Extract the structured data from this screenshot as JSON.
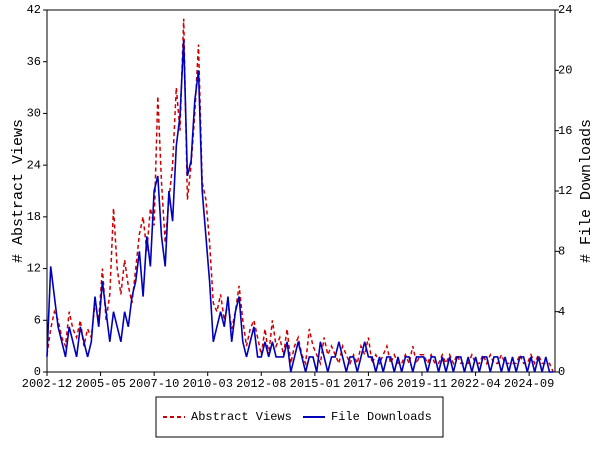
{
  "chart_data": {
    "type": "line",
    "ylabel": "# Abstract Views",
    "y2label": "# File Downloads",
    "x": [
      "2002-12",
      "2003-02",
      "2003-04",
      "2003-06",
      "2003-08",
      "2003-10",
      "2003-12",
      "2004-02",
      "2004-04",
      "2004-06",
      "2004-08",
      "2004-10",
      "2004-12",
      "2005-02",
      "2005-04",
      "2005-06",
      "2005-08",
      "2005-10",
      "2005-12",
      "2006-02",
      "2006-04",
      "2006-06",
      "2006-08",
      "2006-10",
      "2006-12",
      "2007-02",
      "2007-04",
      "2007-06",
      "2007-08",
      "2007-10",
      "2007-12",
      "2008-02",
      "2008-04",
      "2008-06",
      "2008-08",
      "2008-10",
      "2008-12",
      "2009-02",
      "2009-04",
      "2009-06",
      "2009-08",
      "2009-10",
      "2009-12",
      "2010-02",
      "2010-04",
      "2010-06",
      "2010-08",
      "2010-10",
      "2010-12",
      "2011-02",
      "2011-04",
      "2011-06",
      "2011-08",
      "2011-10",
      "2011-12",
      "2012-02",
      "2012-04",
      "2012-06",
      "2012-08",
      "2012-10",
      "2012-12",
      "2013-02",
      "2013-04",
      "2013-06",
      "2013-08",
      "2013-10",
      "2013-12",
      "2014-02",
      "2014-04",
      "2014-06",
      "2014-08",
      "2014-10",
      "2014-12",
      "2015-02",
      "2015-04",
      "2015-06",
      "2015-08",
      "2015-10",
      "2015-12",
      "2016-02",
      "2016-04",
      "2016-06",
      "2016-08",
      "2016-10",
      "2016-12",
      "2017-02",
      "2017-04",
      "2017-06",
      "2017-08",
      "2017-10",
      "2017-12",
      "2018-02",
      "2018-04",
      "2018-06",
      "2018-08",
      "2018-10",
      "2018-12",
      "2019-02",
      "2019-04",
      "2019-06",
      "2019-08",
      "2019-10",
      "2019-12",
      "2020-02",
      "2020-04",
      "2020-06",
      "2020-08",
      "2020-10",
      "2020-12",
      "2021-02",
      "2021-04",
      "2021-06",
      "2021-08",
      "2021-10",
      "2021-12",
      "2022-02",
      "2022-04",
      "2022-06",
      "2022-08",
      "2022-10",
      "2022-12",
      "2023-02",
      "2023-04",
      "2023-06",
      "2023-08",
      "2023-10",
      "2023-12",
      "2024-02",
      "2024-04",
      "2024-06",
      "2024-08",
      "2024-10",
      "2024-12",
      "2025-02",
      "2025-04",
      "2025-06",
      "2025-08",
      "2025-10"
    ],
    "series": [
      {
        "name": "Abstract Views",
        "color": "#cc0000",
        "dashed": true,
        "values": [
          2,
          5,
          7,
          6,
          4,
          3,
          7,
          5,
          4,
          6,
          3,
          5,
          4,
          8,
          6,
          12,
          6,
          9,
          19,
          12,
          9,
          13,
          10,
          8,
          12,
          16,
          18,
          14,
          19,
          17,
          32,
          22,
          15,
          20,
          24,
          33,
          28,
          41,
          20,
          24,
          30,
          38,
          22,
          20,
          15,
          8,
          7,
          9,
          6,
          8,
          5,
          7,
          10,
          6,
          3,
          5,
          6,
          4,
          2,
          5,
          2,
          6,
          3,
          4,
          2,
          5,
          1,
          3,
          4,
          2,
          1,
          5,
          3,
          2,
          1,
          4,
          2,
          3,
          2,
          1,
          3,
          2,
          1,
          2,
          1,
          3,
          2,
          4,
          1,
          2,
          1,
          2,
          3,
          1,
          2,
          1,
          1,
          2,
          1,
          3,
          1,
          2,
          2,
          1,
          2,
          1,
          1,
          2,
          1,
          2,
          1,
          2,
          1,
          1,
          1,
          2,
          1,
          1,
          2,
          1,
          2,
          1,
          1,
          2,
          1,
          1,
          1,
          1,
          2,
          1,
          1,
          2,
          1,
          2,
          1,
          1,
          1,
          0
        ]
      },
      {
        "name": "File Downloads",
        "color": "#0000bb",
        "dashed": false,
        "axis": "y2",
        "values": [
          1,
          7,
          5,
          3,
          2,
          1,
          3,
          2,
          1,
          3,
          2,
          1,
          2,
          5,
          3,
          6,
          4,
          2,
          4,
          3,
          2,
          4,
          3,
          5,
          6,
          8,
          5,
          9,
          7,
          12,
          13,
          9,
          7,
          12,
          10,
          15,
          17,
          22,
          13,
          14,
          18,
          20,
          12,
          9,
          6,
          2,
          3,
          4,
          3,
          5,
          2,
          4,
          5,
          2,
          1,
          2,
          3,
          1,
          1,
          2,
          1,
          2,
          1,
          1,
          1,
          2,
          0,
          1,
          2,
          1,
          0,
          1,
          1,
          0,
          2,
          1,
          0,
          1,
          1,
          2,
          1,
          0,
          1,
          1,
          0,
          1,
          2,
          1,
          1,
          0,
          1,
          0,
          1,
          1,
          0,
          1,
          0,
          1,
          1,
          0,
          1,
          1,
          1,
          0,
          1,
          1,
          0,
          1,
          0,
          1,
          0,
          1,
          1,
          0,
          1,
          0,
          1,
          0,
          1,
          1,
          0,
          1,
          1,
          0,
          1,
          0,
          1,
          0,
          1,
          1,
          0,
          1,
          0,
          1,
          0,
          1,
          0,
          0
        ]
      }
    ],
    "xlim": [
      "2002-12",
      "2025-11"
    ],
    "xticks": [
      "2002-12",
      "2005-05",
      "2007-10",
      "2010-03",
      "2012-08",
      "2015-01",
      "2017-06",
      "2019-11",
      "2022-04",
      "2024-09"
    ],
    "ylim": [
      0,
      42
    ],
    "yticks": [
      0,
      6,
      12,
      18,
      24,
      30,
      36,
      42
    ],
    "y2lim": [
      0,
      24
    ],
    "y2ticks": [
      0,
      4,
      8,
      12,
      16,
      20,
      24
    ],
    "legend": "bottom"
  }
}
